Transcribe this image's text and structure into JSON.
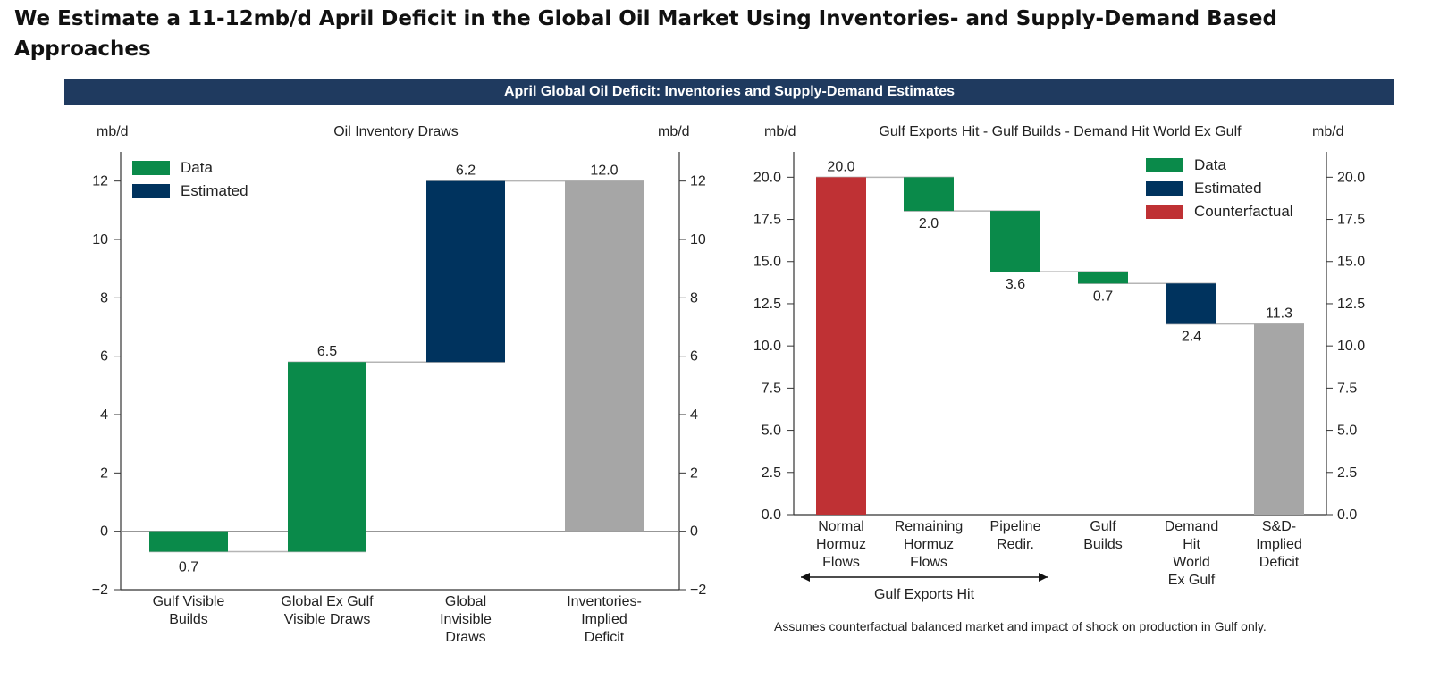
{
  "page_title": "We Estimate a 11-12mb/d April Deficit in the Global Oil Market Using Inventories- and Supply-Demand Based Approaches",
  "banner": "April Global Oil Deficit: Inventories and Supply-Demand Estimates",
  "colors": {
    "data": "#0a8a4a",
    "estimated": "#00335e",
    "counterfactual": "#bf3134",
    "total": "#a6a6a6",
    "banner": "#1f3a5f"
  },
  "chart_data": [
    {
      "type": "waterfall",
      "title": "Oil Inventory Draws",
      "ylabel_left": "mb/d",
      "ylabel_right": "mb/d",
      "ylim": [
        -2,
        13
      ],
      "yticks": [
        -2,
        0,
        2,
        4,
        6,
        8,
        10,
        12
      ],
      "ytick_labels": [
        "−2",
        "0",
        "2",
        "4",
        "6",
        "8",
        "10",
        "12"
      ],
      "legend": [
        {
          "label": "Data",
          "color_key": "data"
        },
        {
          "label": "Estimated",
          "color_key": "estimated"
        }
      ],
      "bars": [
        {
          "category": [
            "Gulf Visible",
            "Builds"
          ],
          "start": 0,
          "end": -0.7,
          "label": "0.7",
          "color_key": "data"
        },
        {
          "category": [
            "Global Ex Gulf",
            "Visible Draws"
          ],
          "start": -0.7,
          "end": 5.8,
          "label": "6.5",
          "color_key": "data"
        },
        {
          "category": [
            "Global",
            "Invisible",
            "Draws"
          ],
          "start": 5.8,
          "end": 12.0,
          "label": "6.2",
          "color_key": "estimated"
        },
        {
          "category": [
            "Inventories-",
            "Implied",
            "Deficit"
          ],
          "start": 0,
          "end": 12.0,
          "label": "12.0",
          "color_key": "total"
        }
      ]
    },
    {
      "type": "waterfall",
      "title": "Gulf Exports Hit - Gulf Builds - Demand Hit World Ex Gulf",
      "ylabel_left": "mb/d",
      "ylabel_right": "mb/d",
      "ylim": [
        0,
        21.5
      ],
      "yticks": [
        0,
        2.5,
        5,
        7.5,
        10,
        12.5,
        15,
        17.5,
        20
      ],
      "ytick_labels": [
        "0.0",
        "2.5",
        "5.0",
        "7.5",
        "10.0",
        "12.5",
        "15.0",
        "17.5",
        "20.0"
      ],
      "legend": [
        {
          "label": "Data",
          "color_key": "data"
        },
        {
          "label": "Estimated",
          "color_key": "estimated"
        },
        {
          "label": "Counterfactual",
          "color_key": "counterfactual"
        }
      ],
      "bars": [
        {
          "category": [
            "Normal",
            "Hormuz",
            "Flows"
          ],
          "start": 0,
          "end": 20.0,
          "label": "20.0",
          "color_key": "counterfactual"
        },
        {
          "category": [
            "Remaining",
            "Hormuz",
            "Flows"
          ],
          "start": 20.0,
          "end": 18.0,
          "label": "2.0",
          "color_key": "data"
        },
        {
          "category": [
            "Pipeline",
            "Redir."
          ],
          "start": 18.0,
          "end": 14.4,
          "label": "3.6",
          "color_key": "data"
        },
        {
          "category": [
            "Gulf",
            "Builds"
          ],
          "start": 14.4,
          "end": 13.7,
          "label": "0.7",
          "color_key": "data"
        },
        {
          "category": [
            "Demand",
            "Hit",
            "World",
            "Ex Gulf"
          ],
          "start": 13.7,
          "end": 11.3,
          "label": "2.4",
          "color_key": "estimated"
        },
        {
          "category": [
            "S&D-",
            "Implied",
            "Deficit"
          ],
          "start": 0,
          "end": 11.3,
          "label": "11.3",
          "color_key": "total"
        }
      ],
      "bracket_label": "Gulf Exports Hit"
    }
  ],
  "footnote": "Assumes counterfactual balanced market and impact of shock on production in Gulf only."
}
